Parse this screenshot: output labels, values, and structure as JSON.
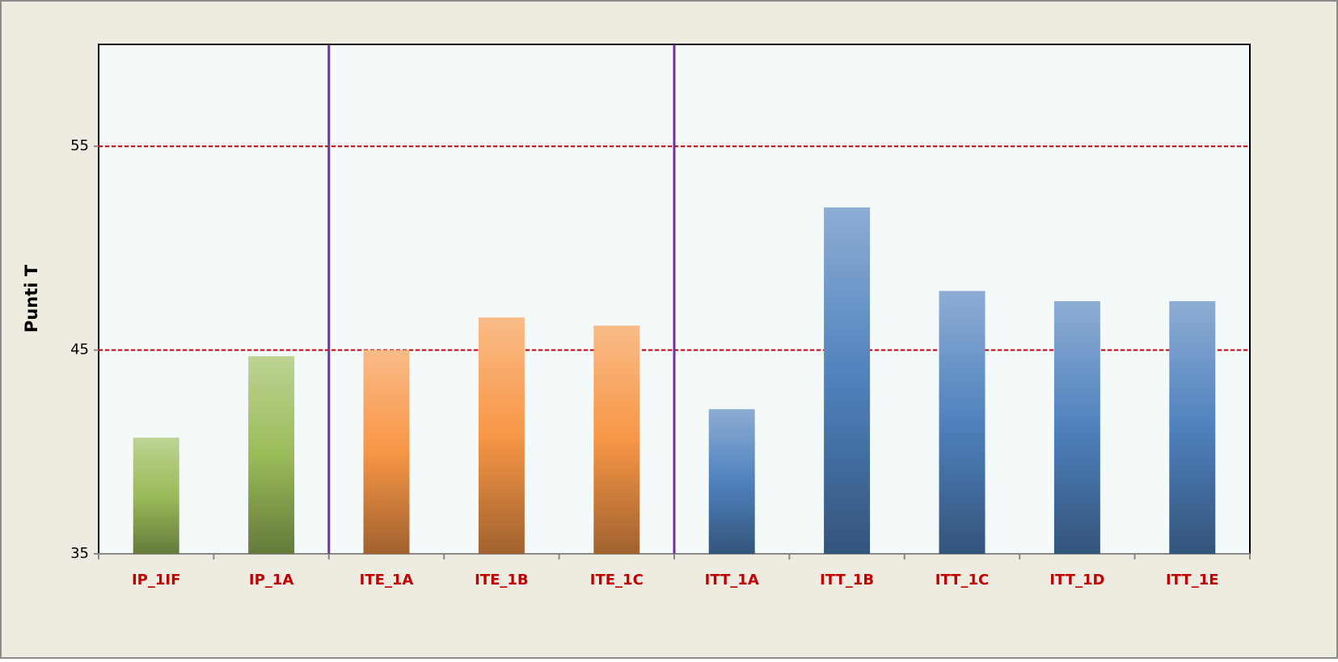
{
  "chart_data": {
    "type": "bar",
    "y_label": "Punti T",
    "categories": [
      "IP_1IF",
      "IP_1A",
      "ITE_1A",
      "ITE_1B",
      "ITE_1C",
      "ITT_1A",
      "ITT_1B",
      "ITT_1C",
      "ITT_1D",
      "ITT_1E"
    ],
    "values": [
      40.7,
      44.7,
      45.0,
      46.6,
      46.2,
      42.1,
      52.0,
      47.9,
      47.4,
      47.4
    ],
    "colors": [
      "#9bbb59",
      "#9bbb59",
      "#f79646",
      "#f79646",
      "#f79646",
      "#4f81bd",
      "#4f81bd",
      "#4f81bd",
      "#4f81bd",
      "#4f81bd"
    ],
    "ylim": [
      35,
      60
    ],
    "yticks": [
      35,
      45,
      55
    ],
    "grid": true,
    "grid_color": "#c00000",
    "separators_after": [
      1,
      4
    ],
    "separator_color": "#7030a0"
  }
}
